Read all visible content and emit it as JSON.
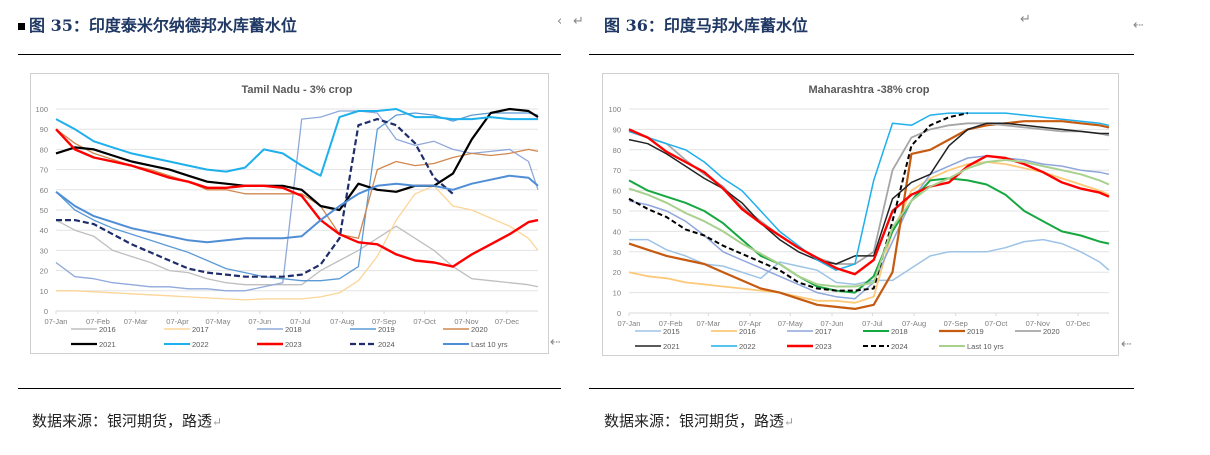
{
  "left": {
    "figure_title": "图 35：印度泰米尔纳德邦水库蓄水位",
    "source": "数据来源：银河期货，路透"
  },
  "right": {
    "figure_title": "图 36：印度马邦水库蓄水位",
    "source": "数据来源：银河期货，路透"
  },
  "marks": {
    "return": "↵",
    "arrow": "⇠",
    "angle": "‹"
  },
  "chart_data": [
    {
      "type": "line",
      "title": "Tamil Nadu - 3% crop",
      "xlabel": "",
      "ylabel": "",
      "ylim": [
        0,
        100
      ],
      "yticks": [
        0,
        10,
        20,
        30,
        40,
        50,
        60,
        70,
        80,
        90,
        100
      ],
      "xticks": [
        "07-Jan",
        "07-Feb",
        "07-Mar",
        "07-Apr",
        "07-May",
        "07-Jun",
        "07-Jul",
        "07-Aug",
        "07-Sep",
        "07-Oct",
        "07-Nov",
        "07-Dec"
      ],
      "x_weeks": [
        0,
        2,
        4,
        6,
        8,
        10,
        12,
        14,
        16,
        18,
        20,
        22,
        24,
        26,
        28,
        30,
        32,
        34,
        36,
        38,
        40,
        42,
        44,
        46,
        48,
        50,
        51
      ],
      "grid": true,
      "legend_position": "bottom",
      "series": [
        {
          "name": "2016",
          "color": "#bfbfbf",
          "width": 1.3,
          "dash": "",
          "values": [
            45,
            40,
            37,
            30,
            27,
            24,
            20,
            19,
            16,
            14,
            13,
            13,
            13,
            13,
            20,
            25,
            30,
            36,
            42,
            36,
            30,
            22,
            16,
            15,
            14,
            13,
            12
          ]
        },
        {
          "name": "2017",
          "color": "#fcd597",
          "width": 1.3,
          "dash": "",
          "values": [
            10,
            10,
            9.5,
            9,
            8.5,
            8,
            7.5,
            7,
            6.5,
            6,
            5.5,
            6,
            6,
            6,
            7,
            9,
            15,
            27,
            45,
            58,
            62,
            52,
            50,
            46,
            42,
            36,
            30
          ]
        },
        {
          "name": "2018",
          "color": "#8fa9db",
          "width": 1.3,
          "dash": "",
          "values": [
            24,
            17,
            16,
            14,
            13,
            12,
            12,
            11,
            11,
            10,
            10,
            12,
            14,
            95,
            96,
            99,
            99,
            98,
            85,
            82,
            84,
            80,
            78,
            79,
            80,
            74,
            60
          ]
        },
        {
          "name": "2019",
          "color": "#5b9bd5",
          "width": 1.3,
          "dash": "",
          "values": [
            59,
            50,
            45,
            41,
            38,
            35,
            32,
            29,
            25,
            21,
            19,
            17,
            16,
            15,
            15,
            16,
            22,
            90,
            97,
            98,
            97,
            94,
            97,
            98,
            98,
            98,
            97
          ]
        },
        {
          "name": "2020",
          "color": "#d08850",
          "width": 1.3,
          "dash": "",
          "values": [
            90,
            83,
            78,
            75,
            72,
            70,
            67,
            64,
            60,
            60,
            58,
            58,
            58,
            58,
            52,
            38,
            36,
            70,
            74,
            72,
            73,
            76,
            78,
            77,
            78,
            80,
            79
          ]
        },
        {
          "name": "2021",
          "color": "#000000",
          "width": 2.2,
          "dash": "",
          "values": [
            78,
            81,
            80,
            77,
            74,
            72,
            70,
            67,
            64,
            63,
            62,
            62,
            62,
            60,
            52,
            50,
            63,
            60,
            59,
            62,
            62,
            68,
            85,
            98,
            100,
            99,
            96
          ]
        },
        {
          "name": "2022",
          "color": "#1db0ec",
          "width": 2,
          "dash": "",
          "values": [
            95,
            90,
            84,
            81,
            78,
            76,
            74,
            72,
            70,
            69,
            71,
            80,
            78,
            72,
            67,
            96,
            99,
            99,
            100,
            96,
            96,
            95,
            95,
            96,
            95,
            95,
            95
          ]
        },
        {
          "name": "2023",
          "color": "#ff0000",
          "width": 2.4,
          "dash": "",
          "values": [
            90,
            80,
            76,
            74,
            72,
            69,
            66,
            64,
            61,
            61,
            62,
            62,
            61,
            57,
            45,
            38,
            34,
            33,
            28,
            25,
            24,
            22,
            28,
            33,
            38,
            44,
            45
          ]
        },
        {
          "name": "2024",
          "color": "#1f2d6b",
          "width": 2.2,
          "dash": "6,3",
          "values": [
            45,
            45,
            43,
            38,
            33,
            29,
            25,
            21,
            19,
            18,
            17,
            17,
            17,
            18,
            23,
            36,
            92,
            95,
            92,
            83,
            66,
            58
          ]
        },
        {
          "name": "Last 10 yrs",
          "color": "#4f8ed6",
          "width": 2,
          "dash": "",
          "values": [
            59,
            52,
            47,
            44,
            41,
            39,
            37,
            35,
            34,
            35,
            36,
            36,
            36,
            37,
            45,
            52,
            58,
            62,
            63,
            62,
            62,
            60,
            63,
            65,
            67,
            66,
            62
          ]
        }
      ]
    },
    {
      "type": "line",
      "title": "Maharashtra -38% crop",
      "xlabel": "",
      "ylabel": "",
      "ylim": [
        0,
        100
      ],
      "yticks": [
        0,
        10,
        20,
        30,
        40,
        50,
        60,
        70,
        80,
        90,
        100
      ],
      "xticks": [
        "07-Jan",
        "07-Feb",
        "07-Mar",
        "07-Apr",
        "07-May",
        "07-Jun",
        "07-Jul",
        "07-Aug",
        "07-Sep",
        "07-Oct",
        "07-Nov",
        "07-Dec"
      ],
      "x_weeks": [
        0,
        2,
        4,
        6,
        8,
        10,
        12,
        14,
        16,
        18,
        20,
        22,
        24,
        26,
        28,
        30,
        32,
        34,
        36,
        38,
        40,
        42,
        44,
        46,
        48,
        50,
        51
      ],
      "grid": true,
      "legend_position": "bottom",
      "series": [
        {
          "name": "2015",
          "color": "#9dc3e6",
          "width": 1.5,
          "dash": "",
          "values": [
            36,
            36,
            31,
            28,
            24,
            23,
            20,
            17,
            25,
            23,
            21,
            15,
            14,
            16,
            16,
            22,
            28,
            30,
            30,
            30,
            32,
            35,
            36,
            34,
            30,
            25,
            21
          ]
        },
        {
          "name": "2016",
          "color": "#fcc978",
          "width": 1.8,
          "dash": "",
          "values": [
            20,
            18,
            17,
            15,
            14,
            13,
            12,
            11,
            10,
            8,
            6,
            6,
            5,
            8,
            40,
            60,
            66,
            70,
            73,
            74,
            73,
            71,
            69,
            66,
            63,
            60,
            58
          ]
        },
        {
          "name": "2017",
          "color": "#8ea6db",
          "width": 1.5,
          "dash": "",
          "values": [
            55,
            53,
            50,
            45,
            38,
            30,
            26,
            22,
            18,
            14,
            10,
            8,
            7,
            15,
            35,
            55,
            68,
            72,
            76,
            77,
            76,
            75,
            73,
            72,
            70,
            69,
            68
          ]
        },
        {
          "name": "2018",
          "color": "#16a840",
          "width": 2,
          "dash": "",
          "values": [
            65,
            60,
            57,
            54,
            50,
            44,
            36,
            28,
            24,
            18,
            13,
            11,
            10,
            18,
            40,
            55,
            65,
            66,
            65,
            63,
            58,
            50,
            45,
            40,
            38,
            35,
            34
          ]
        },
        {
          "name": "2019",
          "color": "#c55a11",
          "width": 2.2,
          "dash": "",
          "values": [
            34,
            31,
            28,
            26,
            24,
            20,
            16,
            12,
            10,
            7,
            4,
            3,
            2,
            4,
            20,
            78,
            80,
            85,
            90,
            92,
            93,
            94,
            94,
            94,
            93,
            92,
            91
          ]
        },
        {
          "name": "2020",
          "color": "#a6a6a6",
          "width": 1.8,
          "dash": "",
          "values": [
            89,
            86,
            83,
            75,
            68,
            62,
            52,
            45,
            38,
            32,
            27,
            24,
            24,
            30,
            70,
            86,
            90,
            92,
            93,
            93,
            92,
            91,
            90,
            89,
            89,
            88,
            87
          ]
        },
        {
          "name": "2021",
          "color": "#222222",
          "width": 1.5,
          "dash": "",
          "values": [
            85,
            83,
            78,
            72,
            66,
            61,
            54,
            44,
            36,
            30,
            26,
            24,
            28,
            28,
            56,
            64,
            68,
            82,
            90,
            93,
            93,
            92,
            91,
            90,
            89,
            88,
            88
          ]
        },
        {
          "name": "2022",
          "color": "#1db0ec",
          "width": 1.5,
          "dash": "",
          "values": [
            89,
            86,
            83,
            80,
            74,
            66,
            60,
            50,
            40,
            33,
            26,
            21,
            24,
            65,
            93,
            92,
            97,
            98,
            98,
            98,
            98,
            97,
            96,
            95,
            94,
            93,
            92
          ]
        },
        {
          "name": "2023",
          "color": "#ff0000",
          "width": 2.4,
          "dash": "",
          "values": [
            90,
            86,
            79,
            74,
            69,
            61,
            51,
            44,
            38,
            32,
            27,
            22,
            19,
            26,
            50,
            58,
            62,
            64,
            72,
            77,
            76,
            73,
            69,
            64,
            61,
            59,
            57
          ]
        },
        {
          "name": "2024",
          "color": "#000000",
          "width": 2,
          "dash": "5,3",
          "values": [
            56,
            51,
            47,
            41,
            38,
            33,
            29,
            25,
            21,
            15,
            12,
            11,
            11,
            12,
            45,
            82,
            92,
            96,
            98
          ]
        },
        {
          "name": "Last 10 yrs",
          "color": "#a9d18e",
          "width": 2,
          "dash": "",
          "values": [
            61,
            58,
            54,
            49,
            45,
            40,
            34,
            29,
            24,
            18,
            14,
            13,
            13,
            15,
            42,
            55,
            62,
            66,
            71,
            74,
            75,
            74,
            72,
            70,
            68,
            65,
            63
          ]
        }
      ]
    }
  ]
}
